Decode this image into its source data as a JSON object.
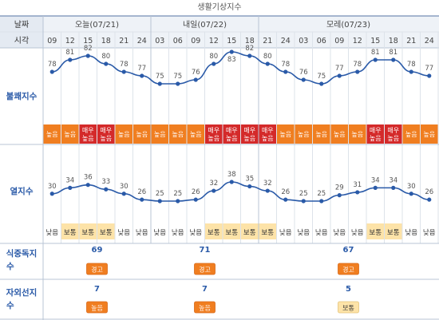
{
  "title": "생활기상지수",
  "header": {
    "date_label": "날짜",
    "time_label": "시각",
    "days": [
      "오늘(07/21)",
      "내일(07/22)",
      "모레(07/23)"
    ],
    "hours": [
      "09",
      "12",
      "15",
      "18",
      "21",
      "24",
      "03",
      "06",
      "09",
      "12",
      "15",
      "18",
      "21",
      "24",
      "03",
      "06",
      "09",
      "12",
      "15",
      "18",
      "21",
      "24"
    ]
  },
  "rows": {
    "discomfort_label": "불쾌지수",
    "heat_label": "열지수",
    "food_label": "식중독지수",
    "uv_label": "자외선지수"
  },
  "colors": {
    "line": "#2a5aa8",
    "value": "#555555",
    "high": "#f07e20",
    "very_high": "#d42a2a",
    "normal_bg": "#fde3a8",
    "label_blue": "#2a5aa8",
    "grid": "#dde3ea"
  },
  "chart_data": [
    {
      "type": "line",
      "name": "불쾌지수",
      "x": [
        "09",
        "12",
        "15",
        "18",
        "21",
        "24",
        "03",
        "06",
        "09",
        "12",
        "15",
        "18",
        "21",
        "24",
        "03",
        "06",
        "09",
        "12",
        "15",
        "18",
        "21",
        "24"
      ],
      "values": [
        78,
        81,
        82,
        80,
        78,
        77,
        75,
        75,
        76,
        80,
        83,
        82,
        80,
        78,
        76,
        75,
        77,
        78,
        81,
        81,
        78,
        77
      ],
      "levels": [
        "높음",
        "높음",
        "매우높음",
        "매우높음",
        "높음",
        "높음",
        "높음",
        "높음",
        "높음",
        "매우높음",
        "매우높음",
        "매우높음",
        "매우높음",
        "높음",
        "높음",
        "높음",
        "높음",
        "높음",
        "매우높음",
        "매우높음",
        "높음",
        "높음"
      ]
    },
    {
      "type": "line",
      "name": "열지수",
      "x": [
        "09",
        "12",
        "15",
        "18",
        "21",
        "24",
        "03",
        "06",
        "09",
        "12",
        "15",
        "18",
        "21",
        "24",
        "03",
        "06",
        "09",
        "12",
        "15",
        "18",
        "21",
        "24"
      ],
      "values": [
        30,
        34,
        36,
        33,
        30,
        26,
        25,
        25,
        26,
        32,
        38,
        35,
        32,
        26,
        25,
        25,
        29,
        31,
        34,
        34,
        30,
        26
      ],
      "levels": [
        "낮음",
        "보통",
        "보통",
        "보통",
        "낮음",
        "낮음",
        "낮음",
        "낮음",
        "낮음",
        "보통",
        "보통",
        "보통",
        "보통",
        "낮음",
        "낮음",
        "낮음",
        "낮음",
        "낮음",
        "보통",
        "보통",
        "낮음",
        "낮음"
      ]
    },
    {
      "type": "table",
      "name": "식중독지수",
      "values": [
        69,
        71,
        67
      ],
      "levels": [
        "경고",
        "경고",
        "경고"
      ]
    },
    {
      "type": "table",
      "name": "자외선지수",
      "values": [
        7,
        7,
        5
      ],
      "levels": [
        "높음",
        "높음",
        "보통"
      ]
    }
  ]
}
